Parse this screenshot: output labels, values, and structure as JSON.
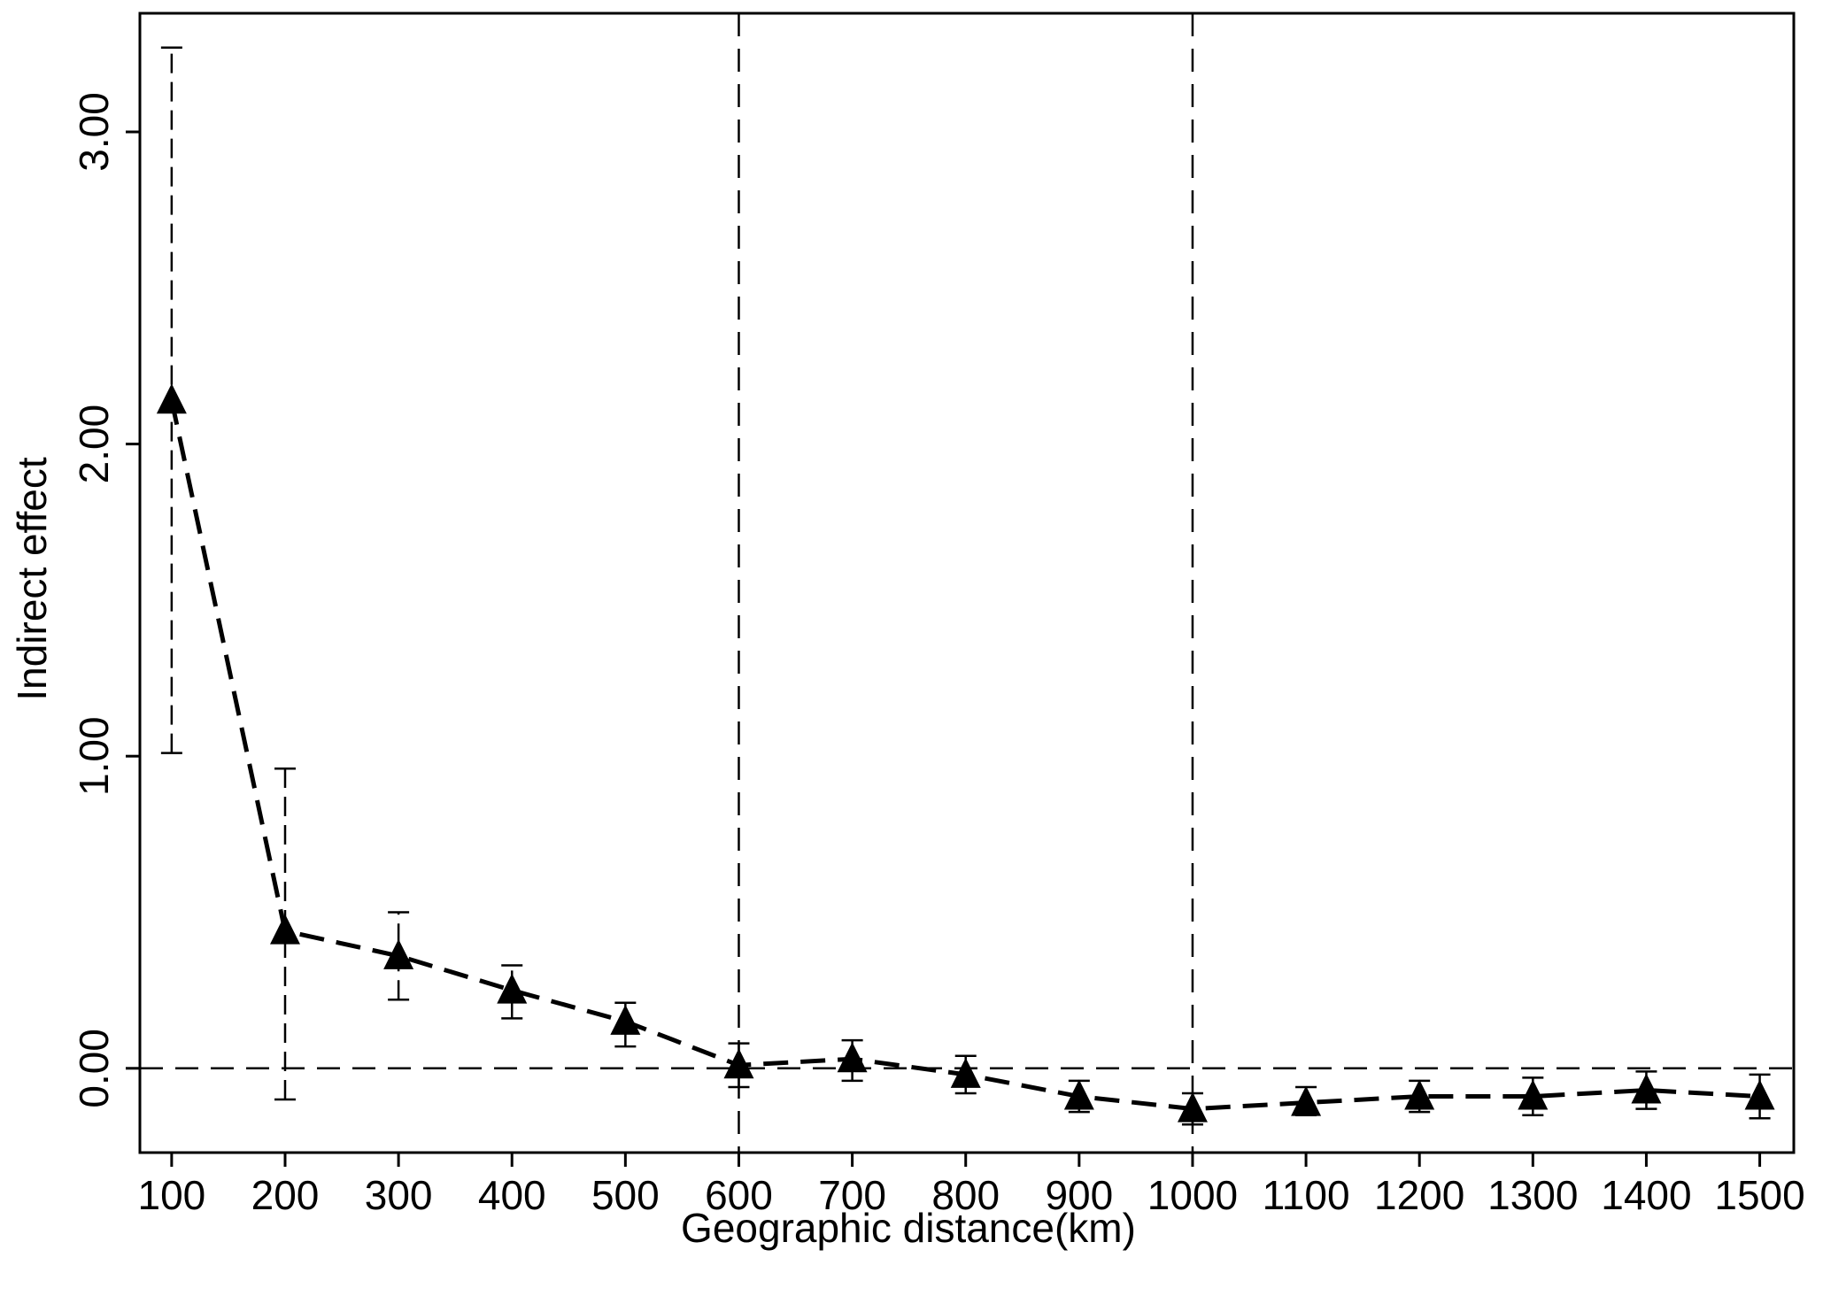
{
  "chart_data": {
    "type": "line",
    "title": "",
    "xlabel": "Geographic distance(km)",
    "ylabel": "Indirect effect",
    "x": [
      100,
      200,
      300,
      400,
      500,
      600,
      700,
      800,
      900,
      1000,
      1100,
      1200,
      1300,
      1400,
      1500
    ],
    "x_tick_labels": [
      "100",
      "200",
      "300",
      "400",
      "500",
      "600",
      "700",
      "800",
      "900",
      "1000",
      "1100",
      "1200",
      "1300",
      "1400",
      "1500"
    ],
    "y_tick_values": [
      0,
      1,
      2,
      3
    ],
    "y_tick_labels": [
      "0.00",
      "1.00",
      "2.00",
      "3.00"
    ],
    "xlim": [
      72,
      1530
    ],
    "ylim": [
      -0.27,
      3.38
    ],
    "series": [
      {
        "values": [
          2.14,
          0.44,
          0.36,
          0.25,
          0.15,
          0.01,
          0.03,
          -0.02,
          -0.09,
          -0.13,
          -0.11,
          -0.09,
          -0.09,
          -0.07,
          -0.09
        ],
        "ci_lower": [
          1.01,
          -0.1,
          0.22,
          0.16,
          0.07,
          -0.06,
          -0.04,
          -0.08,
          -0.14,
          -0.18,
          -0.15,
          -0.14,
          -0.15,
          -0.13,
          -0.16
        ],
        "ci_upper": [
          3.27,
          0.96,
          0.5,
          0.33,
          0.21,
          0.08,
          0.09,
          0.04,
          -0.04,
          -0.08,
          -0.06,
          -0.04,
          -0.03,
          -0.01,
          -0.02
        ],
        "marker": "filled-triangle",
        "line_style": "dashed",
        "color": "#000000"
      }
    ],
    "reference_lines": {
      "horizontal": [
        0
      ],
      "vertical": [
        600,
        1000
      ],
      "style": "dashed"
    },
    "grid": false,
    "legend": "none"
  }
}
